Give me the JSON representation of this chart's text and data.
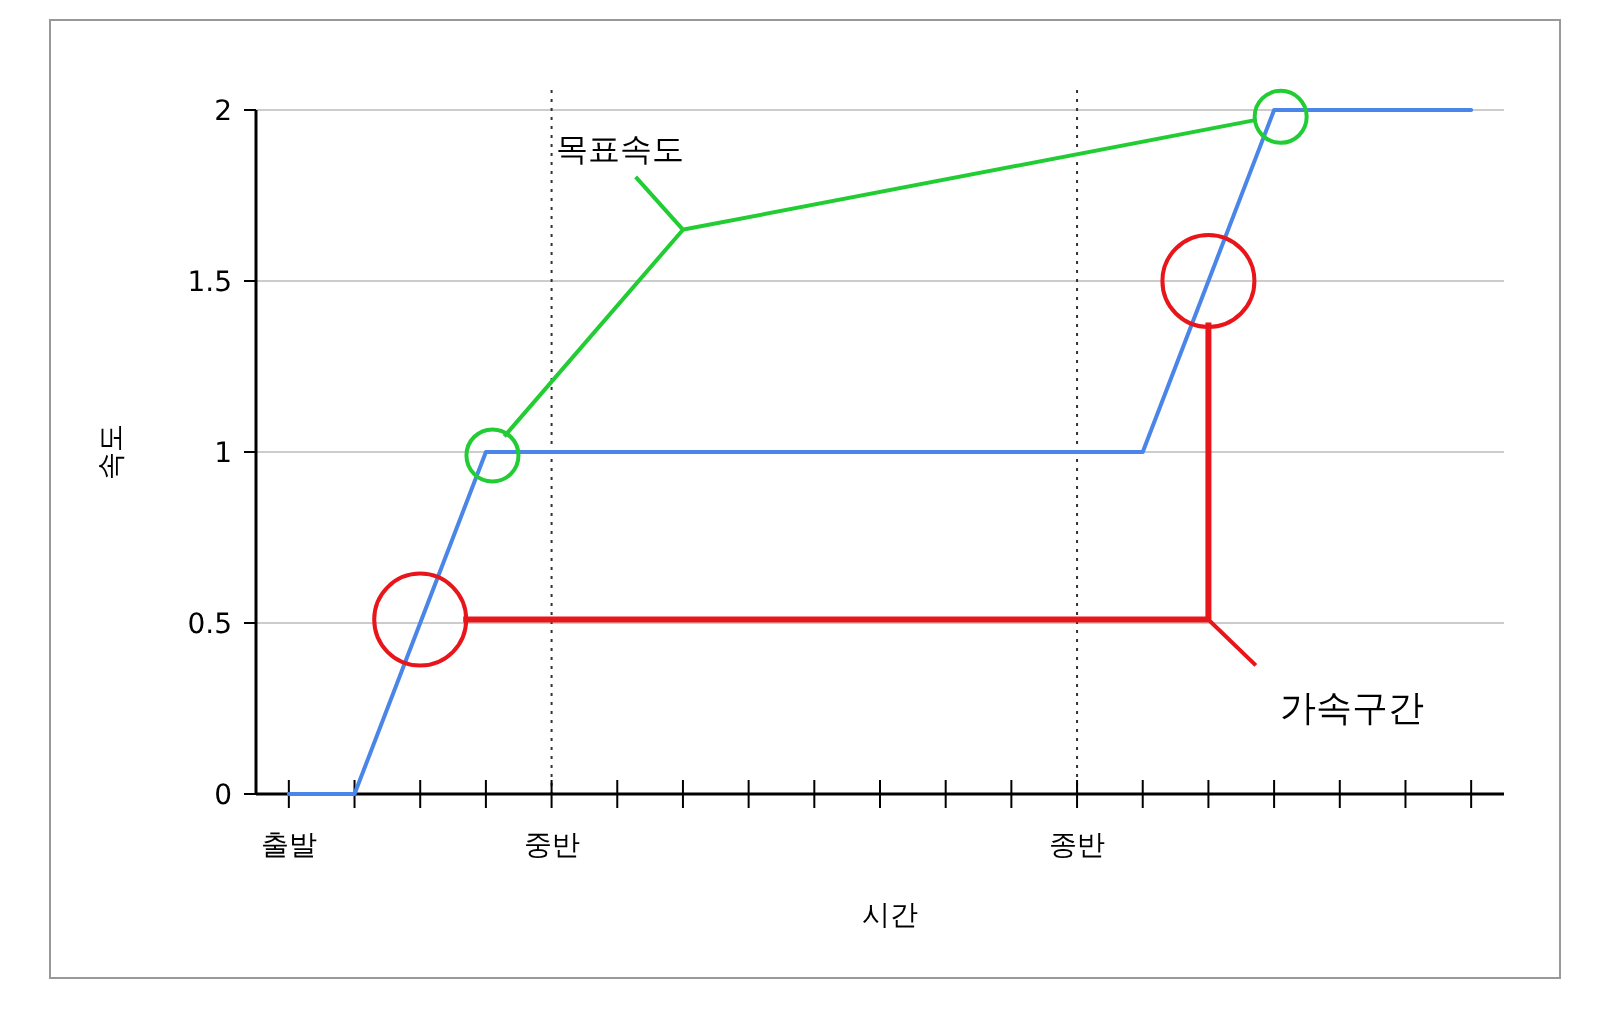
{
  "chart_data": {
    "type": "line",
    "xlabel": "시간",
    "ylabel": "속도",
    "annotations": [
      "목표속도",
      "가속구간"
    ],
    "categories": [
      "출발",
      null,
      null,
      null,
      "중반",
      null,
      null,
      null,
      null,
      null,
      null,
      null,
      "종반",
      null,
      null,
      null,
      null,
      null,
      null
    ],
    "ylim": [
      0,
      2
    ],
    "yticks": [
      0,
      0.5,
      1,
      1.5,
      2
    ],
    "grid": "y",
    "marker": "none",
    "ref_lines": [
      {
        "axis": "x",
        "value": "중반",
        "label": null,
        "color": "#333333",
        "line_style": "dotted"
      },
      {
        "axis": "x",
        "value": "종반",
        "label": null,
        "color": "#333333",
        "line_style": "dotted"
      }
    ],
    "series": [
      {
        "color": "#4a86e8",
        "values": [
          0,
          0,
          0.5,
          1,
          1,
          1,
          1,
          1,
          1,
          1,
          1,
          1,
          1,
          1,
          1.5,
          2,
          2,
          2,
          2
        ],
        "line_style": "solid"
      }
    ]
  }
}
